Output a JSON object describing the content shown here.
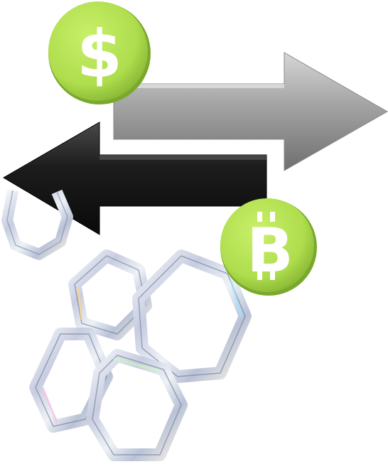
{
  "scene": {
    "description_kind": "currency-exchange-illustration",
    "colors": {
      "background": "#ffffff",
      "coin_green": "#b5e655",
      "coin_green_dark": "#8fc23a",
      "coin_symbol": "#ffffff",
      "arrow_gray": "#9a9a9a",
      "arrow_black": "#1f1f1f",
      "glass": "#dfe3ea"
    },
    "coins": {
      "dollar": {
        "symbol": "$",
        "icon": "dollar-coin-icon"
      },
      "bitcoin": {
        "symbol": "B",
        "icon": "bitcoin-coin-icon"
      }
    },
    "arrows": {
      "right": {
        "icon": "arrow-right-icon",
        "color_name": "gray"
      },
      "left": {
        "icon": "arrow-left-icon",
        "color_name": "black"
      }
    },
    "decor": {
      "icon": "glass-honeycomb-icon"
    }
  }
}
